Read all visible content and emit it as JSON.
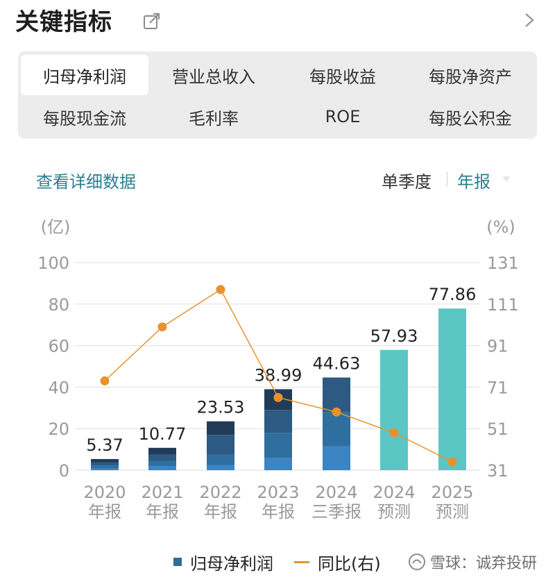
{
  "header": {
    "title": "关键指标"
  },
  "tabs": [
    {
      "label": "归母净利润",
      "active": true
    },
    {
      "label": "营业总收入"
    },
    {
      "label": "每股收益"
    },
    {
      "label": "每股净资产"
    },
    {
      "label": "每股现金流"
    },
    {
      "label": "毛利率"
    },
    {
      "label": "ROE"
    },
    {
      "label": "每股公积金"
    }
  ],
  "toolbar": {
    "detail_link": "查看详细数据",
    "period_quarter": "单季度",
    "period_annual": "年报"
  },
  "chart_data": {
    "type": "bar",
    "left_unit": "(亿)",
    "right_unit": "(%)",
    "ylim_left": [
      0,
      100
    ],
    "ylim_right": [
      31,
      131
    ],
    "left_ticks": [
      0,
      20,
      40,
      60,
      80,
      100
    ],
    "right_ticks": [
      31,
      51,
      71,
      91,
      111,
      131
    ],
    "categories": [
      [
        "2020",
        "年报"
      ],
      [
        "2021",
        "年报"
      ],
      [
        "2022",
        "年报"
      ],
      [
        "2023",
        "年报"
      ],
      [
        "2024",
        "三季报"
      ],
      [
        "2024",
        "预测"
      ],
      [
        "2025",
        "预测"
      ]
    ],
    "series": [
      {
        "name": "归母净利润",
        "type": "bar",
        "axis": "left",
        "values": [
          5.37,
          10.77,
          23.53,
          38.99,
          44.63,
          57.93,
          77.86
        ],
        "labels": [
          "5.37",
          "10.77",
          "23.53",
          "38.99",
          "44.63",
          "57.93",
          "77.86"
        ]
      },
      {
        "name": "同比(右)",
        "type": "line",
        "axis": "right",
        "values": [
          74,
          100,
          118,
          66,
          59,
          49,
          35
        ]
      }
    ],
    "quarter_breakdown": [
      [
        1.0,
        1.3,
        1.4,
        1.67
      ],
      [
        2.0,
        2.5,
        3.0,
        3.27
      ],
      [
        2.5,
        5.0,
        9.5,
        6.53
      ],
      [
        6.0,
        12.0,
        11.0,
        9.99
      ],
      [
        11.5,
        16.5,
        16.63
      ]
    ],
    "colors": {
      "quarters": [
        "#3d84c2",
        "#2f6f9f",
        "#2c5a82",
        "#203b57"
      ],
      "forecast": "#5cc6c4",
      "line": "#e8922f",
      "grid": "#dddddd",
      "axis_text": "#999999"
    },
    "grid": true,
    "legend_position": "bottom"
  },
  "legend": {
    "bar_label": "归母净利润",
    "line_label": "同比(右)"
  },
  "watermark": {
    "text": "雪球：诚弃投研"
  }
}
